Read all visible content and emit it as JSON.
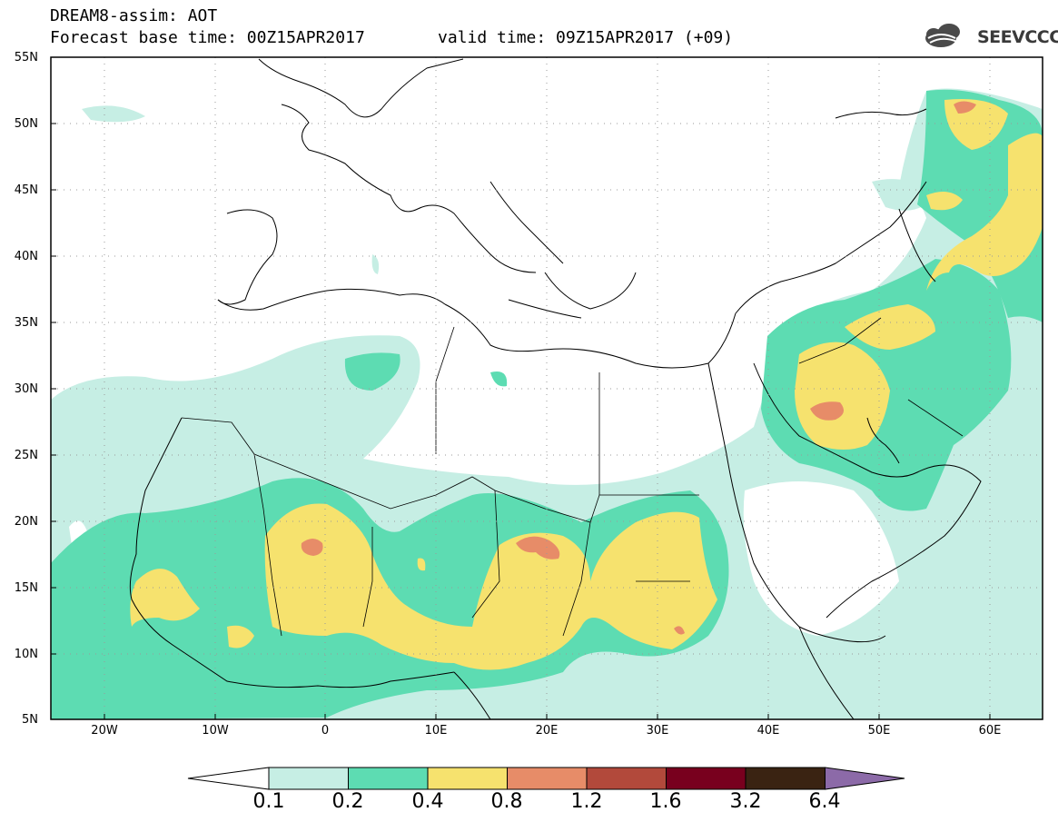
{
  "header": {
    "title": "DREAM8-assim: AOT",
    "base_time": "Forecast base time: 00Z15APR2017",
    "valid_time": "valid time: 09Z15APR2017 (+09)",
    "logo_text": "SEEVCCC"
  },
  "map": {
    "lon_range": [
      -25,
      65
    ],
    "lat_range": [
      5,
      55
    ],
    "lat_labels": [
      "55N",
      "50N",
      "45N",
      "40N",
      "35N",
      "30N",
      "25N",
      "20N",
      "15N",
      "10N",
      "5N"
    ],
    "lon_labels": [
      "20W",
      "10W",
      "0",
      "10E",
      "20E",
      "30E",
      "40E",
      "50E",
      "60E"
    ],
    "grid_lines": "dotted",
    "fill_colors": {
      "0.1-0.2": "#c6eee4",
      "0.2-0.4": "#5ddcb2",
      "0.4-0.8": "#f6e26e",
      "0.8-1.2": "#e78c68",
      "1.2-1.6": "#b2493b",
      "1.6-3.2": "#78001e",
      "3.2-6.4": "#3a2312",
      ">6.4": "#8c6aa8"
    }
  },
  "colorbar": {
    "labels": [
      "0.1",
      "0.2",
      "0.4",
      "0.8",
      "1.2",
      "1.6",
      "3.2",
      "6.4"
    ]
  }
}
